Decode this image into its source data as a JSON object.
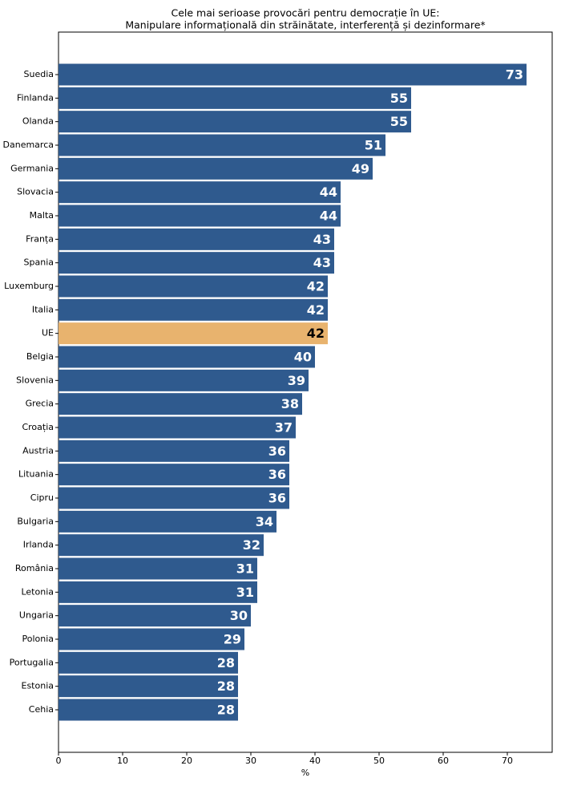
{
  "chart_data": {
    "type": "barh",
    "title": "Cele mai serioase provocări pentru democrație în UE:",
    "subtitle": "Manipulare informațională din străinătate, interferență și dezinformare*",
    "xlabel": "%",
    "categories": [
      "Suedia",
      "Finlanda",
      "Olanda",
      "Danemarca",
      "Germania",
      "Slovacia",
      "Malta",
      "Franța",
      "Spania",
      "Luxemburg",
      "Italia",
      "UE",
      "Belgia",
      "Slovenia",
      "Grecia",
      "Croația",
      "Austria",
      "Lituania",
      "Cipru",
      "Bulgaria",
      "Irlanda",
      "România",
      "Letonia",
      "Ungaria",
      "Polonia",
      "Portugalia",
      "Estonia",
      "Cehia"
    ],
    "values": [
      73,
      55,
      55,
      51,
      49,
      44,
      44,
      43,
      43,
      42,
      42,
      42,
      40,
      39,
      38,
      37,
      36,
      36,
      36,
      34,
      32,
      31,
      31,
      30,
      29,
      28,
      28,
      28
    ],
    "colors": [
      "#2f5a8e",
      "#2f5a8e",
      "#2f5a8e",
      "#2f5a8e",
      "#2f5a8e",
      "#2f5a8e",
      "#2f5a8e",
      "#2f5a8e",
      "#2f5a8e",
      "#2f5a8e",
      "#2f5a8e",
      "#e8b36e",
      "#2f5a8e",
      "#2f5a8e",
      "#2f5a8e",
      "#2f5a8e",
      "#2f5a8e",
      "#2f5a8e",
      "#2f5a8e",
      "#2f5a8e",
      "#2f5a8e",
      "#2f5a8e",
      "#2f5a8e",
      "#2f5a8e",
      "#2f5a8e",
      "#2f5a8e",
      "#2f5a8e",
      "#2f5a8e"
    ],
    "xlim": [
      0,
      77
    ],
    "xticks": [
      0,
      10,
      20,
      30,
      40,
      50,
      60,
      70
    ]
  }
}
